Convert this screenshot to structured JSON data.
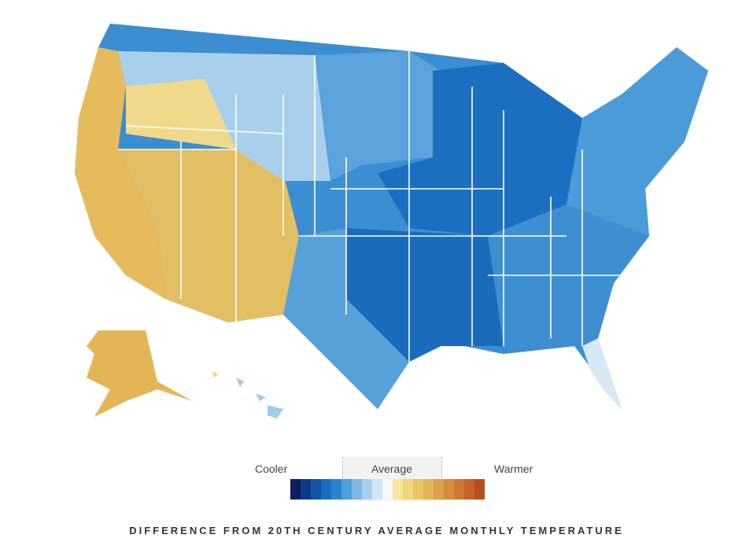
{
  "legend": {
    "cooler_label": "Cooler",
    "average_label": "Average",
    "warmer_label": "Warmer",
    "colors": [
      "#0d1f5c",
      "#0a3a82",
      "#0f56a5",
      "#176fbf",
      "#2a86cc",
      "#4e9fdb",
      "#7db8e4",
      "#a8d0ed",
      "#d2e6f5",
      "#f7f7f7",
      "#f7e6a0",
      "#f0d579",
      "#e8c565",
      "#e2b656",
      "#dba24a",
      "#d48b3a",
      "#cf7632",
      "#c7632a",
      "#b84d1f"
    ]
  },
  "caption": "DIFFERENCE FROM 20TH CENTURY AVERAGE MONTHLY TEMPERATURE",
  "regions": [
    {
      "name": "alaska",
      "color": "#e3b556"
    },
    {
      "name": "hawaii",
      "color": "#9fcce8"
    },
    {
      "name": "hawaii-west",
      "color": "#f0d579"
    },
    {
      "name": "west-coast",
      "color": "#e5bb5c"
    },
    {
      "name": "southwest",
      "color": "#e3bf63"
    },
    {
      "name": "mountain-north",
      "color": "#a8d0ed"
    },
    {
      "name": "great-basin",
      "color": "#f0d98a"
    },
    {
      "name": "plains-north",
      "color": "#5aa3dc"
    },
    {
      "name": "midwest",
      "color": "#1c6fc0"
    },
    {
      "name": "south-central",
      "color": "#1b6bbd"
    },
    {
      "name": "texas",
      "color": "#58a2dc"
    },
    {
      "name": "southeast",
      "color": "#3e8fd2"
    },
    {
      "name": "northeast",
      "color": "#4a9bd8"
    },
    {
      "name": "florida-south",
      "color": "#d8e8f4"
    }
  ]
}
